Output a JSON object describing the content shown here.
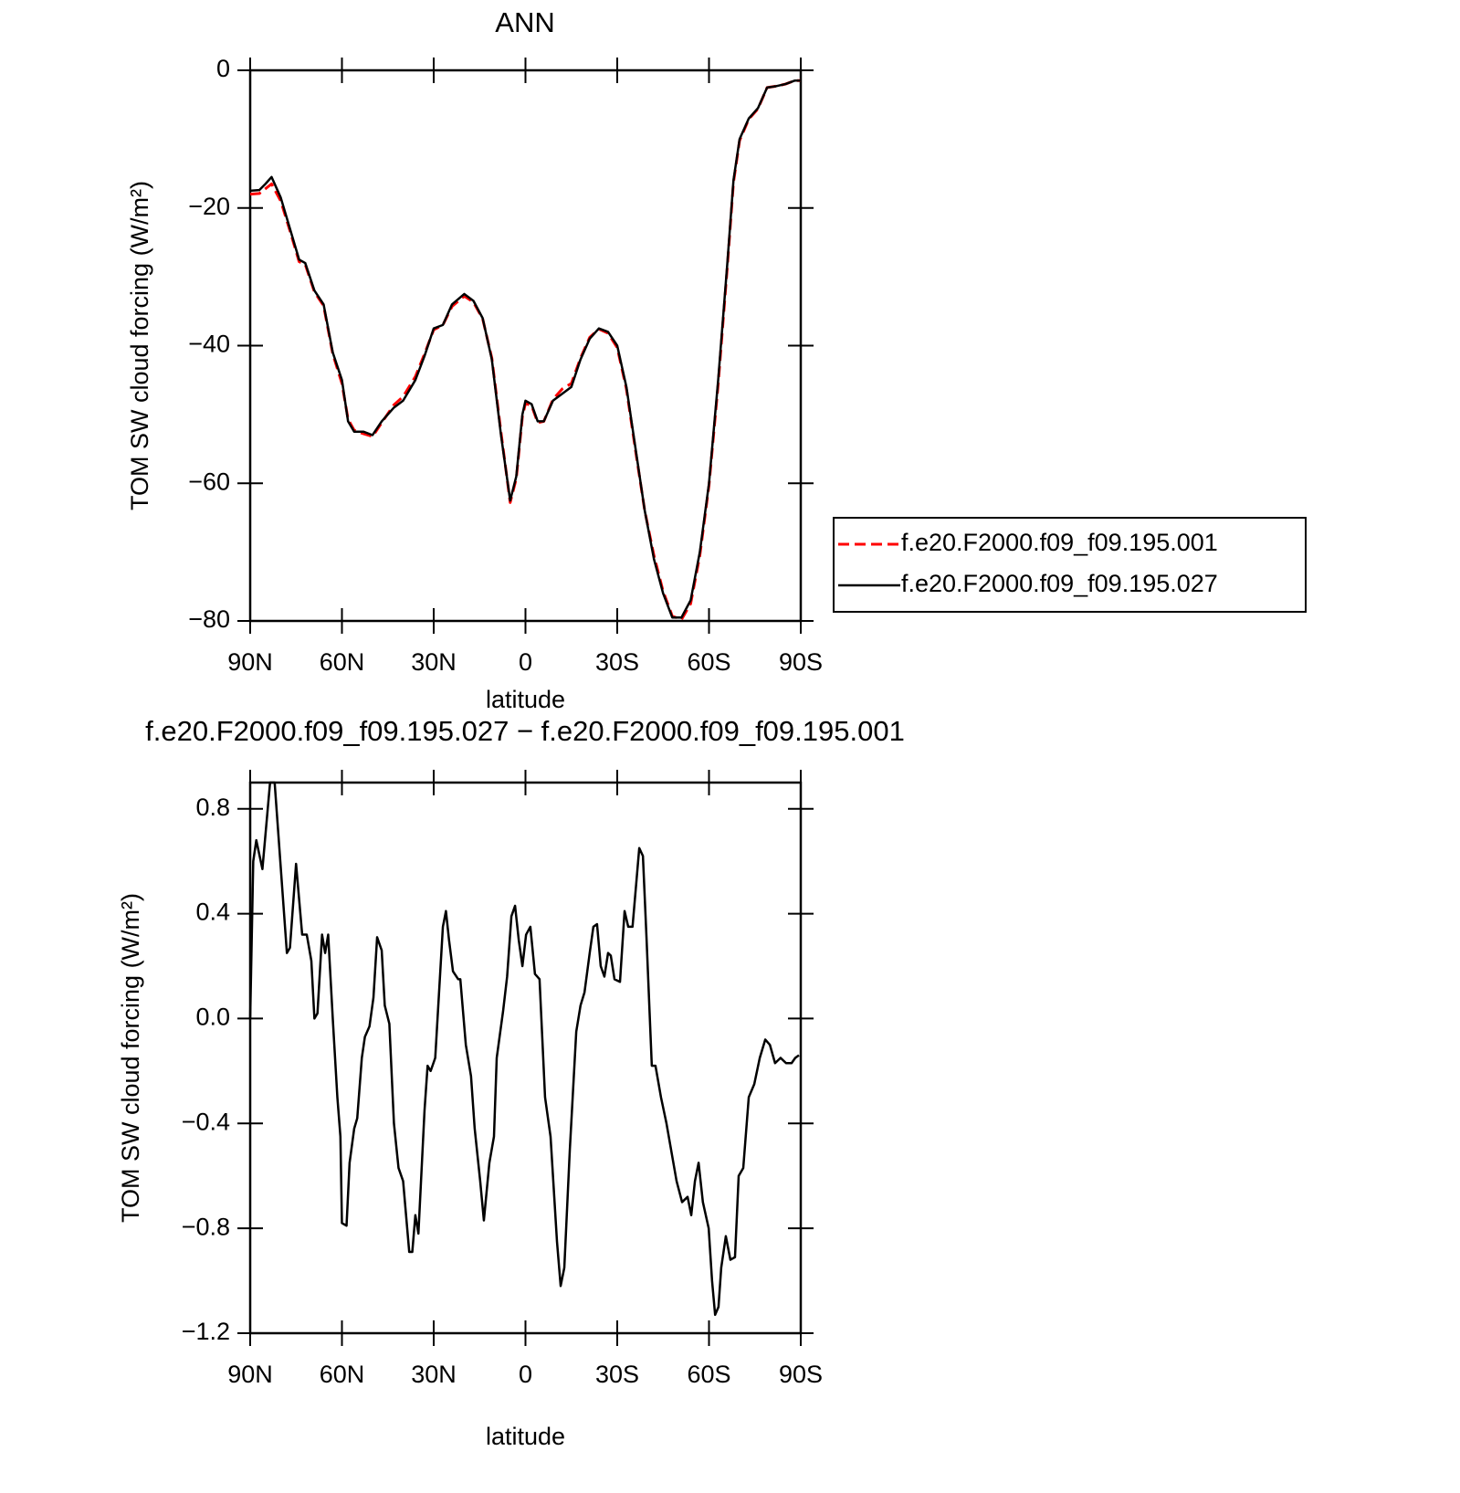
{
  "chart_data": [
    {
      "type": "line",
      "title": "ANN",
      "xlabel": "latitude",
      "ylabel": "TOM SW cloud forcing (W/m²)",
      "xlim": [
        90,
        -90
      ],
      "xticks": [
        {
          "value": 90,
          "label": "90N"
        },
        {
          "value": 60,
          "label": "60N"
        },
        {
          "value": 30,
          "label": "30N"
        },
        0,
        {
          "value": -30,
          "label": "30S"
        },
        {
          "value": -60,
          "label": "60S"
        },
        {
          "value": -90,
          "label": "90S"
        }
      ],
      "ylim": [
        -80,
        0
      ],
      "yticks": [
        0,
        {
          "value": -20,
          "label": "−20"
        },
        {
          "value": -40,
          "label": "−40"
        },
        {
          "value": -60,
          "label": "−60"
        },
        {
          "value": -80,
          "label": "−80"
        }
      ],
      "legend": "outside-right",
      "x": [
        90,
        87,
        85,
        83,
        80,
        77,
        74,
        72,
        69,
        66,
        63,
        60,
        58,
        56,
        53,
        50,
        47,
        43,
        40,
        36,
        33,
        30,
        27,
        24,
        20,
        17,
        14,
        11,
        8,
        5,
        3,
        1,
        0,
        -2,
        -4,
        -6,
        -9,
        -12,
        -15,
        -18,
        -21,
        -24,
        -27,
        -30,
        -33,
        -36,
        -39,
        -42,
        -45,
        -48,
        -51,
        -54,
        -57,
        -60,
        -63,
        -66,
        -68,
        -70,
        -73,
        -76,
        -79,
        -82,
        -85,
        -88,
        -90
      ],
      "series": [
        {
          "name": "f.e20.F2000.f09_f09.195.001",
          "color": "#ff0000",
          "dashed": true,
          "values": [
            -18,
            -17.9,
            -17.2,
            -16.5,
            -19,
            -23.3,
            -27.8,
            -28.2,
            -32.2,
            -34.2,
            -41.2,
            -45.5,
            -50.7,
            -52.3,
            -52.8,
            -53.2,
            -51.2,
            -48.6,
            -47.4,
            -44.5,
            -41.2,
            -37.7,
            -37,
            -34.3,
            -32.8,
            -33.7,
            -36.1,
            -41.8,
            -52.6,
            -62.8,
            -59.3,
            -50.3,
            -48.4,
            -48.7,
            -51.2,
            -51,
            -47.8,
            -46.3,
            -45.5,
            -41.8,
            -38.8,
            -37.6,
            -38.2,
            -40.3,
            -46.3,
            -55.3,
            -64,
            -70.5,
            -75.7,
            -79.3,
            -79.8,
            -77.5,
            -70.5,
            -60.3,
            -45.6,
            -28.5,
            -16.3,
            -10.2,
            -7.1,
            -5.6,
            -2.5,
            -2.3,
            -2,
            -1.5,
            -1.5
          ]
        },
        {
          "name": "f.e20.F2000.f09_f09.195.027",
          "color": "#000000",
          "dashed": false,
          "values": [
            -17.5,
            -17.4,
            -16.5,
            -15.5,
            -18.5,
            -23,
            -27.5,
            -28,
            -32,
            -34,
            -41,
            -45,
            -51,
            -52.5,
            -52.5,
            -53,
            -51,
            -49,
            -48,
            -45,
            -41.5,
            -37.5,
            -37,
            -34,
            -32.5,
            -33.5,
            -36,
            -42,
            -53,
            -62.5,
            -59,
            -50,
            -48,
            -48.5,
            -51,
            -51,
            -48,
            -47,
            -46,
            -42,
            -39,
            -37.5,
            -38,
            -40,
            -46,
            -55,
            -64,
            -71,
            -76,
            -79.5,
            -79.5,
            -77,
            -70,
            -60,
            -45,
            -28,
            -16,
            -10,
            -7,
            -5.5,
            -2.5,
            -2.3,
            -2,
            -1.5,
            -1.5
          ]
        }
      ]
    },
    {
      "type": "line",
      "title": "f.e20.F2000.f09_f09.195.027 − f.e20.F2000.f09_f09.195.001",
      "xlabel": "latitude",
      "ylabel": "TOM SW cloud forcing (W/m²)",
      "xlim": [
        90,
        -90
      ],
      "xticks": [
        {
          "value": 90,
          "label": "90N"
        },
        {
          "value": 60,
          "label": "60N"
        },
        {
          "value": 30,
          "label": "30N"
        },
        0,
        {
          "value": -30,
          "label": "30S"
        },
        {
          "value": -60,
          "label": "60S"
        },
        {
          "value": -90,
          "label": "90S"
        }
      ],
      "ylim": [
        -1.2,
        0.9
      ],
      "yticks": [
        0.8,
        0.4,
        {
          "value": 0,
          "label": "0.0"
        },
        {
          "value": -0.4,
          "label": "−0.4"
        },
        {
          "value": -0.8,
          "label": "−0.8"
        },
        {
          "value": -1.2,
          "label": "−1.2"
        }
      ],
      "x": [
        90,
        89,
        88,
        86,
        83.5,
        82,
        78,
        77,
        75,
        73,
        71.5,
        70,
        69,
        68,
        66.5,
        65.5,
        64.5,
        63,
        61.5,
        60.5,
        60,
        58.5,
        57.5,
        56,
        55,
        53.5,
        52.5,
        51,
        49.7,
        48.5,
        47,
        46,
        44.5,
        43,
        41.5,
        40,
        38,
        37,
        36,
        35,
        33,
        32,
        31,
        29.5,
        28.5,
        27,
        26,
        25,
        23.7,
        22,
        21.3,
        19.5,
        17.8,
        16.6,
        14.8,
        13.6,
        11.8,
        10.3,
        9.4,
        7.3,
        6,
        4.6,
        3.4,
        2.2,
        1,
        -0.2,
        -1.6,
        -3.1,
        -4.6,
        -6.4,
        -8.2,
        -10.3,
        -11.5,
        -12.7,
        -14.5,
        -16.6,
        -18,
        -19.3,
        -21,
        -22.2,
        -23.4,
        -24.6,
        -25.8,
        -27,
        -27.9,
        -29.1,
        -30.9,
        -32.4,
        -33.6,
        -35,
        -37.2,
        -38.4,
        -39.6,
        -41.3,
        -42.5,
        -44.3,
        -46.1,
        -47.6,
        -49.4,
        -51.2,
        -53,
        -54.2,
        -55.4,
        -56.6,
        -58,
        -59.9,
        -61,
        -62,
        -63.1,
        -64,
        -65.5,
        -67,
        -68.5,
        -69.7,
        -71.2,
        -73,
        -74.8,
        -76.6,
        -78.4,
        -79.9,
        -81.6,
        -83.4,
        -85.2,
        -87,
        -88.2,
        -89.4
      ],
      "series": [
        {
          "color": "#000000",
          "values": [
            0,
            0.6,
            0.68,
            0.57,
            0.9,
            0.9,
            0.25,
            0.27,
            0.59,
            0.32,
            0.32,
            0.22,
            0,
            0.02,
            0.32,
            0.25,
            0.32,
            0,
            -0.3,
            -0.45,
            -0.78,
            -0.79,
            -0.55,
            -0.42,
            -0.38,
            -0.15,
            -0.07,
            -0.03,
            0.08,
            0.31,
            0.26,
            0.05,
            -0.02,
            -0.4,
            -0.57,
            -0.62,
            -0.89,
            -0.89,
            -0.75,
            -0.82,
            -0.35,
            -0.18,
            -0.2,
            -0.15,
            0.05,
            0.35,
            0.41,
            0.3,
            0.18,
            0.15,
            0.15,
            -0.1,
            -0.22,
            -0.42,
            -0.62,
            -0.77,
            -0.55,
            -0.45,
            -0.15,
            0.03,
            0.16,
            0.39,
            0.43,
            0.3,
            0.2,
            0.32,
            0.35,
            0.17,
            0.15,
            -0.3,
            -0.45,
            -0.85,
            -1.02,
            -0.95,
            -0.5,
            -0.05,
            0.05,
            0.1,
            0.25,
            0.35,
            0.36,
            0.2,
            0.16,
            0.25,
            0.24,
            0.15,
            0.14,
            0.41,
            0.35,
            0.35,
            0.65,
            0.62,
            0.3,
            -0.18,
            -0.18,
            -0.3,
            -0.4,
            -0.5,
            -0.62,
            -0.7,
            -0.68,
            -0.75,
            -0.62,
            -0.55,
            -0.7,
            -0.8,
            -1,
            -1.13,
            -1.1,
            -0.95,
            -0.83,
            -0.92,
            -0.91,
            -0.6,
            -0.57,
            -0.3,
            -0.25,
            -0.15,
            -0.08,
            -0.1,
            -0.17,
            -0.15,
            -0.17,
            -0.17,
            -0.15,
            -0.14
          ]
        }
      ]
    }
  ]
}
